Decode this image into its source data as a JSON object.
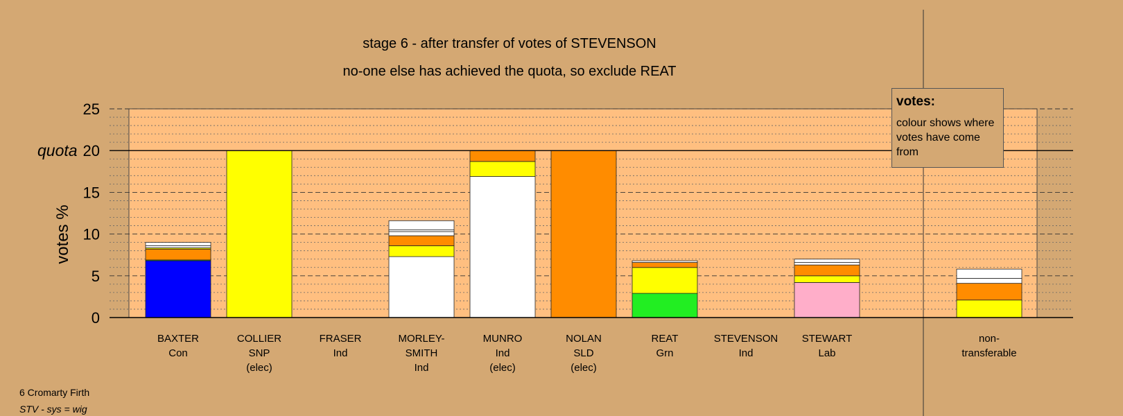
{
  "title": "stage 6 - after transfer of votes of STEVENSON",
  "subtitle": "no-one else has achieved the quota, so exclude REAT",
  "legend": {
    "title": "votes:",
    "text": "colour shows where votes have come from"
  },
  "footer": {
    "line1": "6 Cromarty Firth",
    "line2": "STV - sys = wig"
  },
  "chart_data": {
    "type": "bar",
    "stacked": true,
    "ylabel": "votes %",
    "ylim": [
      0,
      25
    ],
    "yticks": [
      0,
      5,
      10,
      15,
      20,
      25
    ],
    "quota": 20,
    "quota_label": "quota",
    "grid": true,
    "colors": {
      "Con": "#0000FF",
      "SNP": "#FFFF00",
      "Ind": "#FFFFFF",
      "SLD": "#FF8C00",
      "Grn": "#22EE22",
      "Lab": "#FFAEC9"
    },
    "candidates": [
      {
        "name": "BAXTER",
        "party": "Con",
        "status": "",
        "segments": [
          {
            "source": "Con",
            "value": 6.8
          },
          {
            "source": "Grn",
            "value": 0.1
          },
          {
            "source": "SLD",
            "value": 1.3
          },
          {
            "source": "SNP",
            "value": 0.15
          },
          {
            "source": "Ind",
            "value": 0.25
          },
          {
            "source": "Ind",
            "value": 0.4
          }
        ]
      },
      {
        "name": "COLLIER",
        "party": "SNP",
        "status": "(elec)",
        "segments": [
          {
            "source": "SNP",
            "value": 20.0
          }
        ]
      },
      {
        "name": "FRASER",
        "party": "Ind",
        "status": "",
        "segments": []
      },
      {
        "name": "MORLEY-SMITH",
        "party": "Ind",
        "status": "",
        "segments": [
          {
            "source": "Ind",
            "value": 7.3
          },
          {
            "source": "SNP",
            "value": 1.3
          },
          {
            "source": "SLD",
            "value": 1.2
          },
          {
            "source": "Ind",
            "value": 0.5
          },
          {
            "source": "Ind",
            "value": 0.2
          },
          {
            "source": "Ind",
            "value": 1.1
          }
        ]
      },
      {
        "name": "MUNRO",
        "party": "Ind",
        "status": "(elec)",
        "segments": [
          {
            "source": "Ind",
            "value": 16.9
          },
          {
            "source": "SNP",
            "value": 1.8
          },
          {
            "source": "SLD",
            "value": 1.3
          }
        ]
      },
      {
        "name": "NOLAN",
        "party": "SLD",
        "status": "(elec)",
        "segments": [
          {
            "source": "SLD",
            "value": 20.0
          }
        ]
      },
      {
        "name": "REAT",
        "party": "Grn",
        "status": "",
        "segments": [
          {
            "source": "Grn",
            "value": 2.9
          },
          {
            "source": "SNP",
            "value": 3.1
          },
          {
            "source": "SLD",
            "value": 0.6
          },
          {
            "source": "Ind",
            "value": 0.2
          }
        ]
      },
      {
        "name": "STEVENSON",
        "party": "Ind",
        "status": "",
        "segments": []
      },
      {
        "name": "STEWART",
        "party": "Lab",
        "status": "",
        "segments": [
          {
            "source": "Lab",
            "value": 4.2
          },
          {
            "source": "SNP",
            "value": 0.8
          },
          {
            "source": "SLD",
            "value": 1.3
          },
          {
            "source": "Ind",
            "value": 0.3
          },
          {
            "source": "Ind",
            "value": 0.4
          }
        ]
      }
    ],
    "non_transferable": {
      "name": "non-",
      "name2": "transferable",
      "segments": [
        {
          "source": "SNP",
          "value": 2.1
        },
        {
          "source": "SLD",
          "value": 2.0
        },
        {
          "source": "Ind",
          "value": 0.6
        },
        {
          "source": "Ind",
          "value": 1.1
        }
      ]
    }
  }
}
